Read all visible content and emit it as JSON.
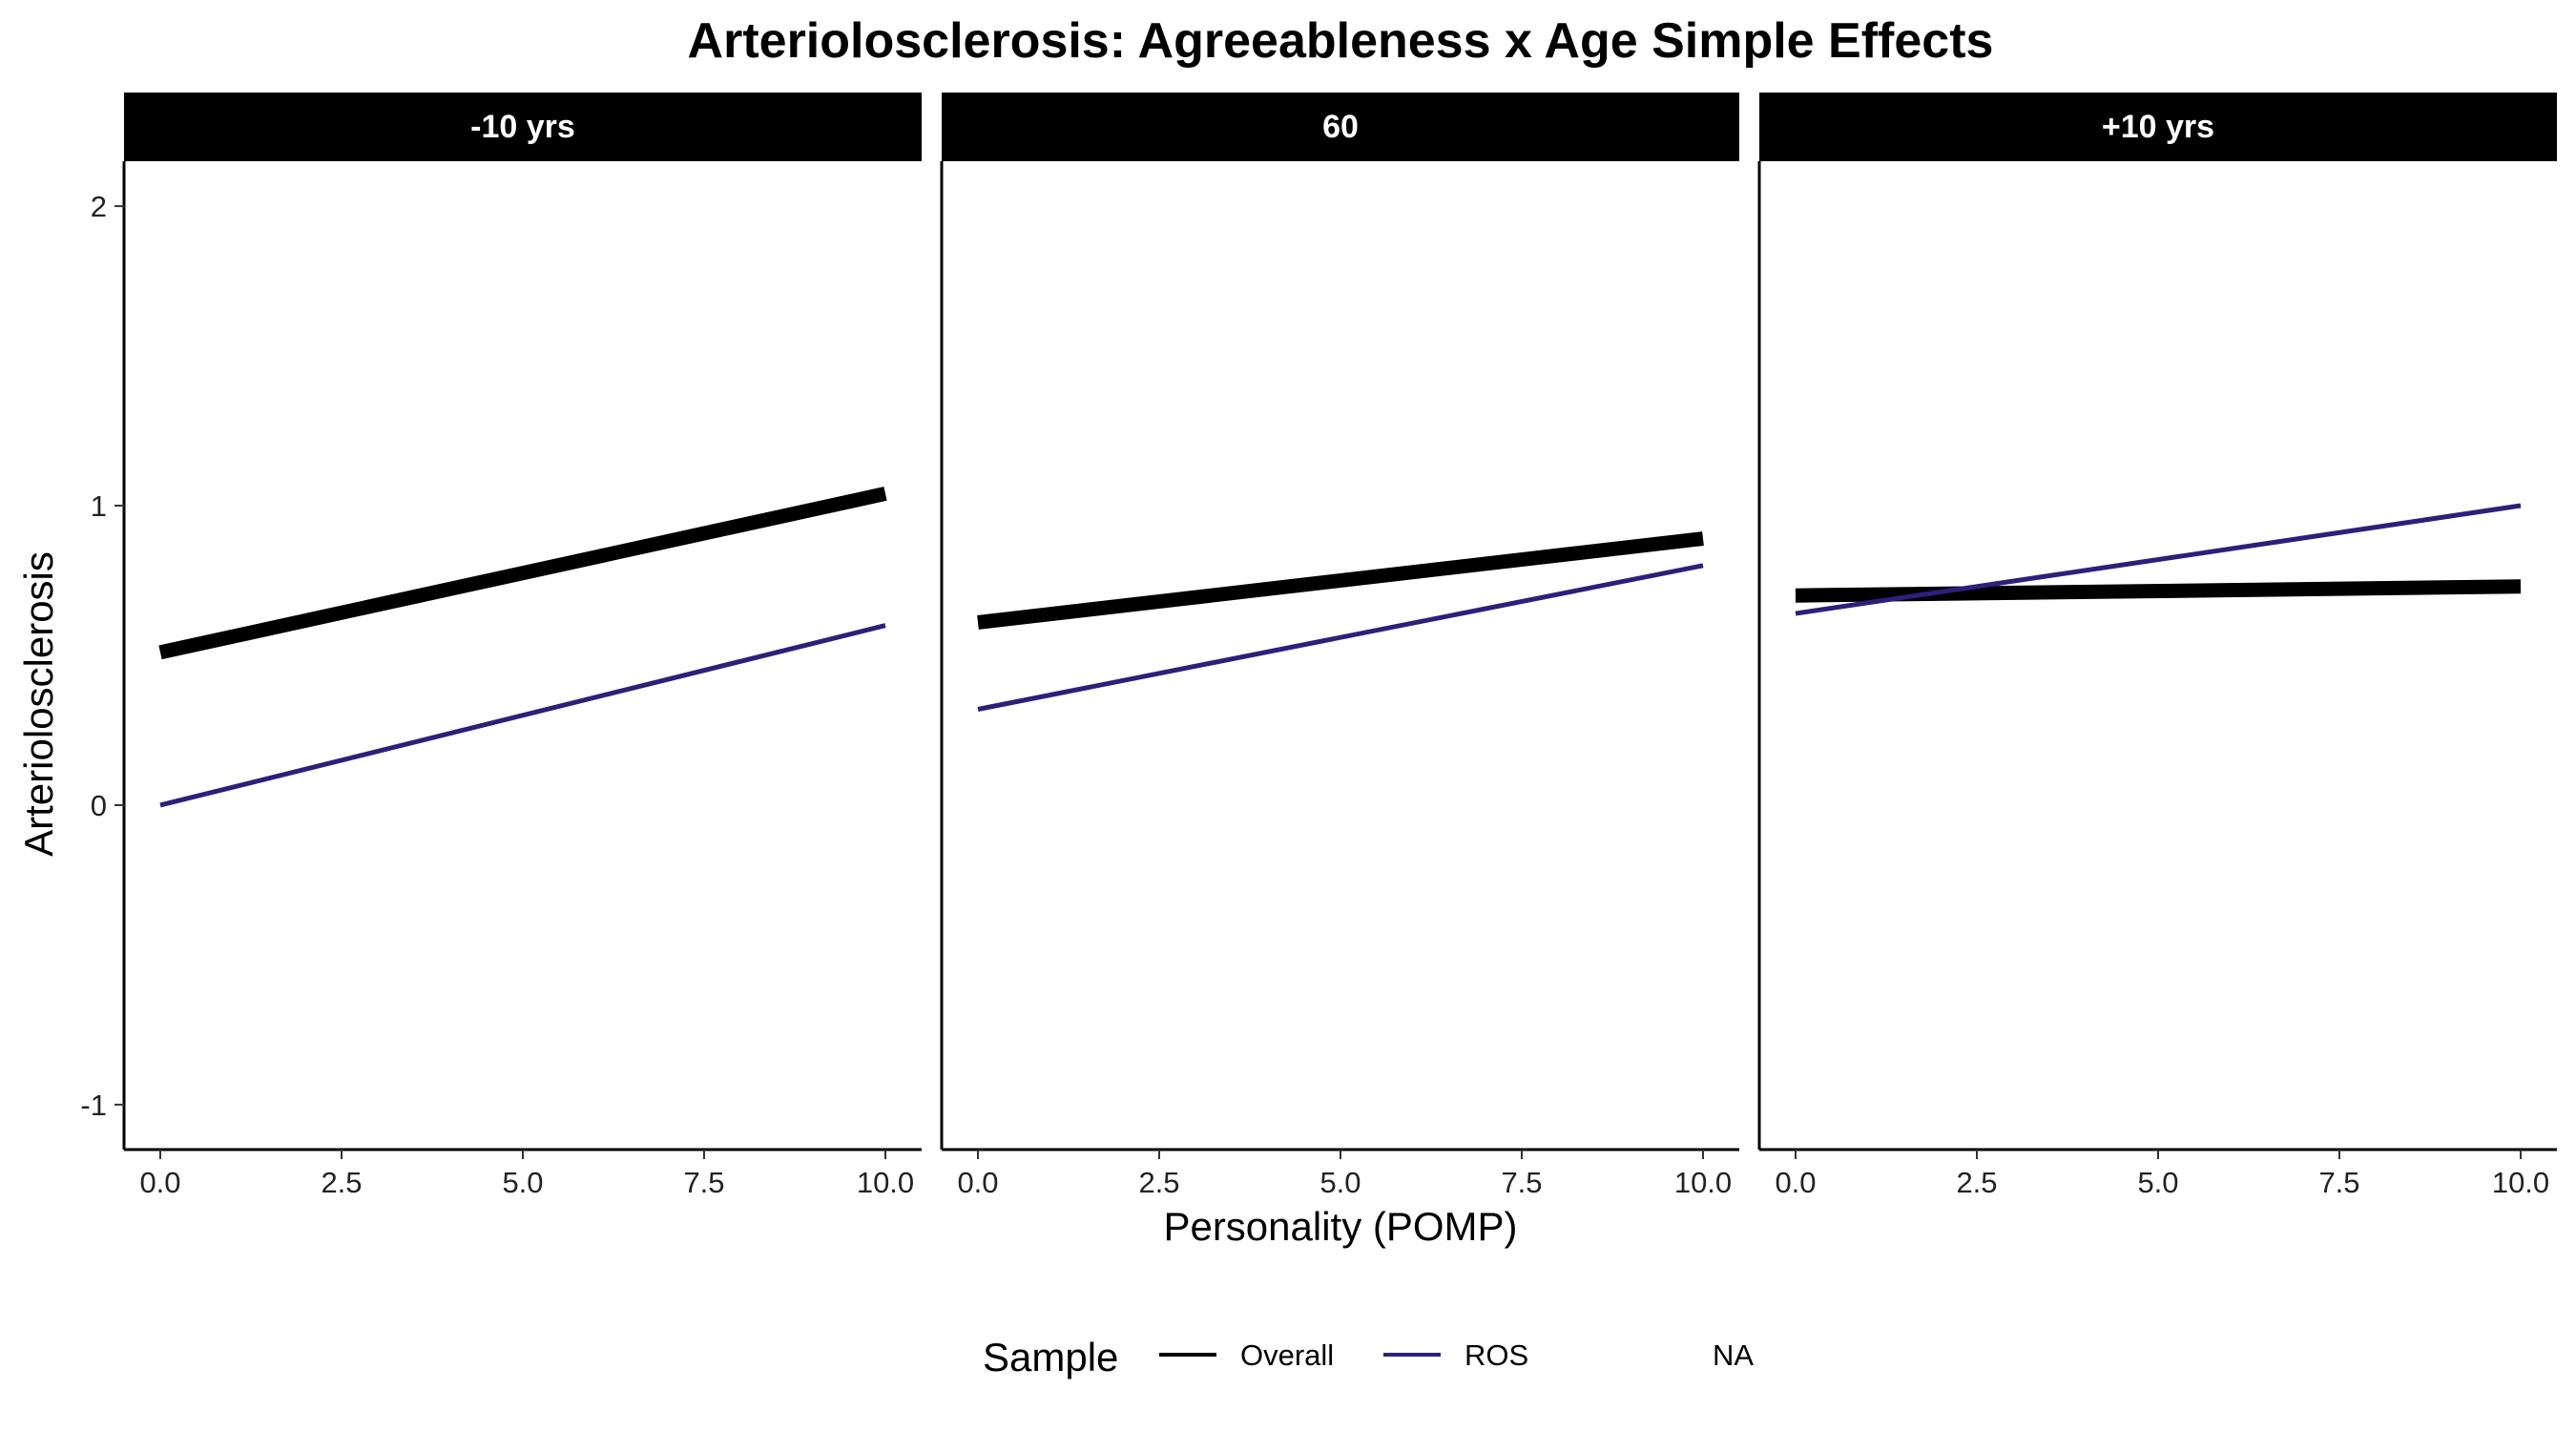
{
  "chart_data": {
    "type": "line",
    "title": "Arteriolosclerosis: Agreeableness x Age Simple Effects",
    "xlabel": "Personality (POMP)",
    "ylabel": "Arteriolosclerosis",
    "xlim": [
      -0.5,
      10.5
    ],
    "ylim": [
      -1.15,
      2.15
    ],
    "x_ticks": [
      0,
      2.5,
      5,
      7.5,
      10
    ],
    "x_tick_labels": [
      "0.0",
      "2.5",
      "5.0",
      "7.5",
      "10.0"
    ],
    "y_ticks": [
      -1,
      0,
      1,
      2
    ],
    "y_tick_labels": [
      "-1",
      "0",
      "1",
      "2"
    ],
    "legend": {
      "title": "Sample",
      "position": "bottom",
      "entries": [
        {
          "label": "Overall",
          "color": "#000000",
          "width": "thin"
        },
        {
          "label": "ROS",
          "color": "#2e1f7a",
          "width": "thin"
        },
        {
          "label": "NA",
          "color": null,
          "width": "none"
        }
      ]
    },
    "panels": [
      {
        "label": "-10 yrs",
        "series": [
          {
            "name": "Overall",
            "color": "#000000",
            "x": [
              0,
              10
            ],
            "y": [
              0.51,
              1.04
            ]
          },
          {
            "name": "ROS",
            "color": "#2e1f7a",
            "x": [
              0,
              10
            ],
            "y": [
              0.0,
              0.6
            ]
          }
        ]
      },
      {
        "label": "60",
        "series": [
          {
            "name": "Overall",
            "color": "#000000",
            "x": [
              0,
              10
            ],
            "y": [
              0.61,
              0.89
            ]
          },
          {
            "name": "ROS",
            "color": "#2e1f7a",
            "x": [
              0,
              10
            ],
            "y": [
              0.32,
              0.8
            ]
          }
        ]
      },
      {
        "label": "+10 yrs",
        "series": [
          {
            "name": "Overall",
            "color": "#000000",
            "x": [
              0,
              10
            ],
            "y": [
              0.7,
              0.73
            ]
          },
          {
            "name": "ROS",
            "color": "#2e1f7a",
            "x": [
              0,
              10
            ],
            "y": [
              0.64,
              1.0
            ]
          }
        ]
      }
    ]
  }
}
